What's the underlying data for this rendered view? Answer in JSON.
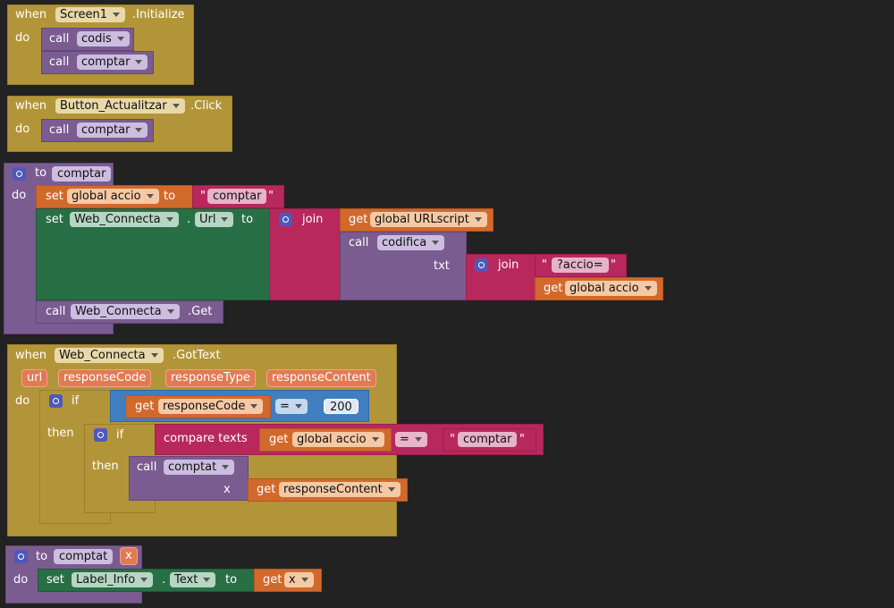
{
  "w": {
    "when": "when",
    "do": "do",
    "call": "call",
    "to": "to",
    "set": "set",
    "get": "get",
    "join": "join",
    "if": "if",
    "then": "then",
    "x": "x",
    "txt": "txt",
    "compare": "compare texts",
    "dot": "."
  },
  "b1": {
    "component": "Screen1",
    "event": ".Initialize",
    "proc1": "codis",
    "proc2": "comptar"
  },
  "b2": {
    "component": "Button_Actualitzar",
    "event": ".Click",
    "proc": "comptar"
  },
  "b3": {
    "name": "comptar",
    "var": "global accio",
    "str1": "comptar",
    "comp": "Web_Connecta",
    "prop": "Url",
    "urlvar": "global URLscript",
    "codifica": "codifica",
    "str2": "?accio=",
    "var2": "global accio",
    "comp2": "Web_Connecta",
    "method": ".Get"
  },
  "b4": {
    "component": "Web_Connecta",
    "event": ".GotText",
    "params": [
      "url",
      "responseCode",
      "responseType",
      "responseContent"
    ],
    "var": "responseCode",
    "op": "=",
    "num": "200",
    "var2": "global accio",
    "op2": "=",
    "str": "comptar",
    "proc": "comptat",
    "var3": "responseContent"
  },
  "b5": {
    "name": "comptat",
    "param": "x",
    "comp": "Label_Info",
    "prop": "Text",
    "var": "x"
  },
  "colors": {
    "background": "#222222",
    "event": "#b39539",
    "procedure": "#7b5c91",
    "variable": "#d2692c",
    "text": "#b8285c",
    "component": "#296f46",
    "logic": "#3f7fbf"
  }
}
